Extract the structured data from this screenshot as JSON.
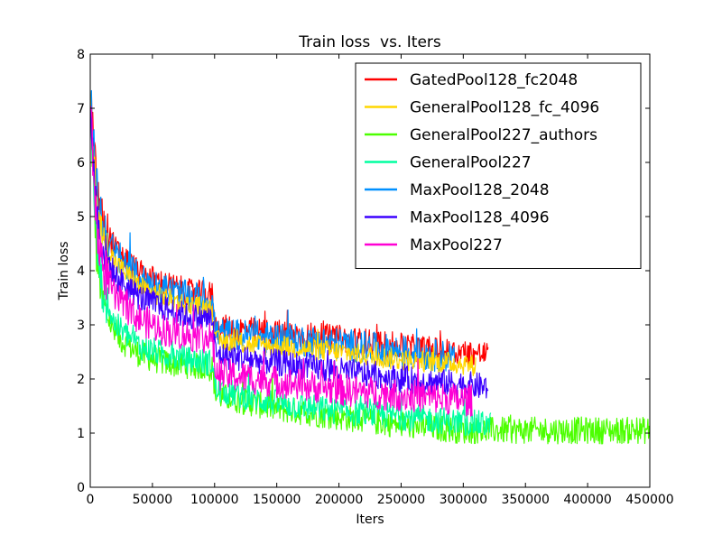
{
  "chart_data": {
    "type": "line",
    "title": "Train loss  vs. Iters",
    "xlabel": "Iters",
    "ylabel": "Train loss",
    "xlim": [
      0,
      450000
    ],
    "ylim": [
      0,
      8
    ],
    "xticks": [
      0,
      50000,
      100000,
      150000,
      200000,
      250000,
      300000,
      350000,
      400000,
      450000
    ],
    "yticks": [
      0,
      1,
      2,
      3,
      4,
      5,
      6,
      7,
      8
    ],
    "grid": false,
    "legend_position": "top-right",
    "series": [
      {
        "name": "GatedPool128_fc2048",
        "color": "#ff0000",
        "end": 320000,
        "points": [
          [
            0,
            7.3
          ],
          [
            5000,
            5.6
          ],
          [
            10000,
            4.9
          ],
          [
            20000,
            4.4
          ],
          [
            40000,
            3.95
          ],
          [
            60000,
            3.75
          ],
          [
            80000,
            3.6
          ],
          [
            98000,
            3.55
          ],
          [
            101000,
            2.95
          ],
          [
            150000,
            2.85
          ],
          [
            200000,
            2.75
          ],
          [
            250000,
            2.6
          ],
          [
            290000,
            2.5
          ],
          [
            320000,
            2.45
          ]
        ],
        "band": 0.25
      },
      {
        "name": "GeneralPool128_fc_4096",
        "color": "#ffd700",
        "end": 310000,
        "points": [
          [
            0,
            7.0
          ],
          [
            5000,
            5.3
          ],
          [
            10000,
            4.6
          ],
          [
            20000,
            4.15
          ],
          [
            40000,
            3.7
          ],
          [
            60000,
            3.5
          ],
          [
            80000,
            3.35
          ],
          [
            98000,
            3.3
          ],
          [
            101000,
            2.7
          ],
          [
            150000,
            2.6
          ],
          [
            200000,
            2.5
          ],
          [
            250000,
            2.35
          ],
          [
            290000,
            2.3
          ],
          [
            310000,
            2.25
          ]
        ],
        "band": 0.2
      },
      {
        "name": "GeneralPool227_authors",
        "color": "#4cff00",
        "end": 450000,
        "points": [
          [
            0,
            7.0
          ],
          [
            5000,
            4.3
          ],
          [
            10000,
            3.4
          ],
          [
            20000,
            2.8
          ],
          [
            40000,
            2.45
          ],
          [
            60000,
            2.3
          ],
          [
            80000,
            2.25
          ],
          [
            98000,
            2.2
          ],
          [
            101000,
            1.7
          ],
          [
            150000,
            1.45
          ],
          [
            200000,
            1.3
          ],
          [
            250000,
            1.15
          ],
          [
            300000,
            1.05
          ],
          [
            350000,
            1.05
          ],
          [
            400000,
            1.05
          ],
          [
            450000,
            1.05
          ]
        ],
        "band": 0.25
      },
      {
        "name": "GeneralPool227",
        "color": "#00ffa0",
        "end": 322000,
        "points": [
          [
            0,
            7.1
          ],
          [
            5000,
            4.5
          ],
          [
            10000,
            3.6
          ],
          [
            20000,
            3.0
          ],
          [
            40000,
            2.6
          ],
          [
            60000,
            2.45
          ],
          [
            80000,
            2.35
          ],
          [
            98000,
            2.3
          ],
          [
            101000,
            1.8
          ],
          [
            150000,
            1.55
          ],
          [
            200000,
            1.4
          ],
          [
            250000,
            1.3
          ],
          [
            300000,
            1.2
          ],
          [
            322000,
            1.15
          ]
        ],
        "band": 0.25
      },
      {
        "name": "MaxPool128_2048",
        "color": "#0090ff",
        "end": 293000,
        "points": [
          [
            0,
            7.2
          ],
          [
            5000,
            5.5
          ],
          [
            10000,
            4.8
          ],
          [
            20000,
            4.3
          ],
          [
            40000,
            3.85
          ],
          [
            60000,
            3.65
          ],
          [
            80000,
            3.5
          ],
          [
            98000,
            3.45
          ],
          [
            101000,
            2.85
          ],
          [
            150000,
            2.75
          ],
          [
            200000,
            2.65
          ],
          [
            250000,
            2.5
          ],
          [
            293000,
            2.4
          ]
        ],
        "band": 0.3
      },
      {
        "name": "MaxPool128_4096",
        "color": "#3b00ff",
        "end": 320000,
        "points": [
          [
            0,
            7.0
          ],
          [
            5000,
            5.1
          ],
          [
            10000,
            4.4
          ],
          [
            20000,
            3.9
          ],
          [
            40000,
            3.5
          ],
          [
            60000,
            3.3
          ],
          [
            80000,
            3.15
          ],
          [
            98000,
            3.1
          ],
          [
            101000,
            2.45
          ],
          [
            150000,
            2.3
          ],
          [
            200000,
            2.15
          ],
          [
            250000,
            2.0
          ],
          [
            300000,
            1.9
          ],
          [
            320000,
            1.85
          ]
        ],
        "band": 0.25
      },
      {
        "name": "MaxPool227",
        "color": "#ff00d4",
        "end": 307000,
        "points": [
          [
            0,
            7.0
          ],
          [
            5000,
            4.8
          ],
          [
            10000,
            4.1
          ],
          [
            20000,
            3.5
          ],
          [
            40000,
            3.1
          ],
          [
            60000,
            2.9
          ],
          [
            80000,
            2.8
          ],
          [
            98000,
            2.75
          ],
          [
            101000,
            2.1
          ],
          [
            150000,
            1.95
          ],
          [
            200000,
            1.8
          ],
          [
            250000,
            1.7
          ],
          [
            307000,
            1.6
          ]
        ],
        "band": 0.3
      }
    ]
  }
}
